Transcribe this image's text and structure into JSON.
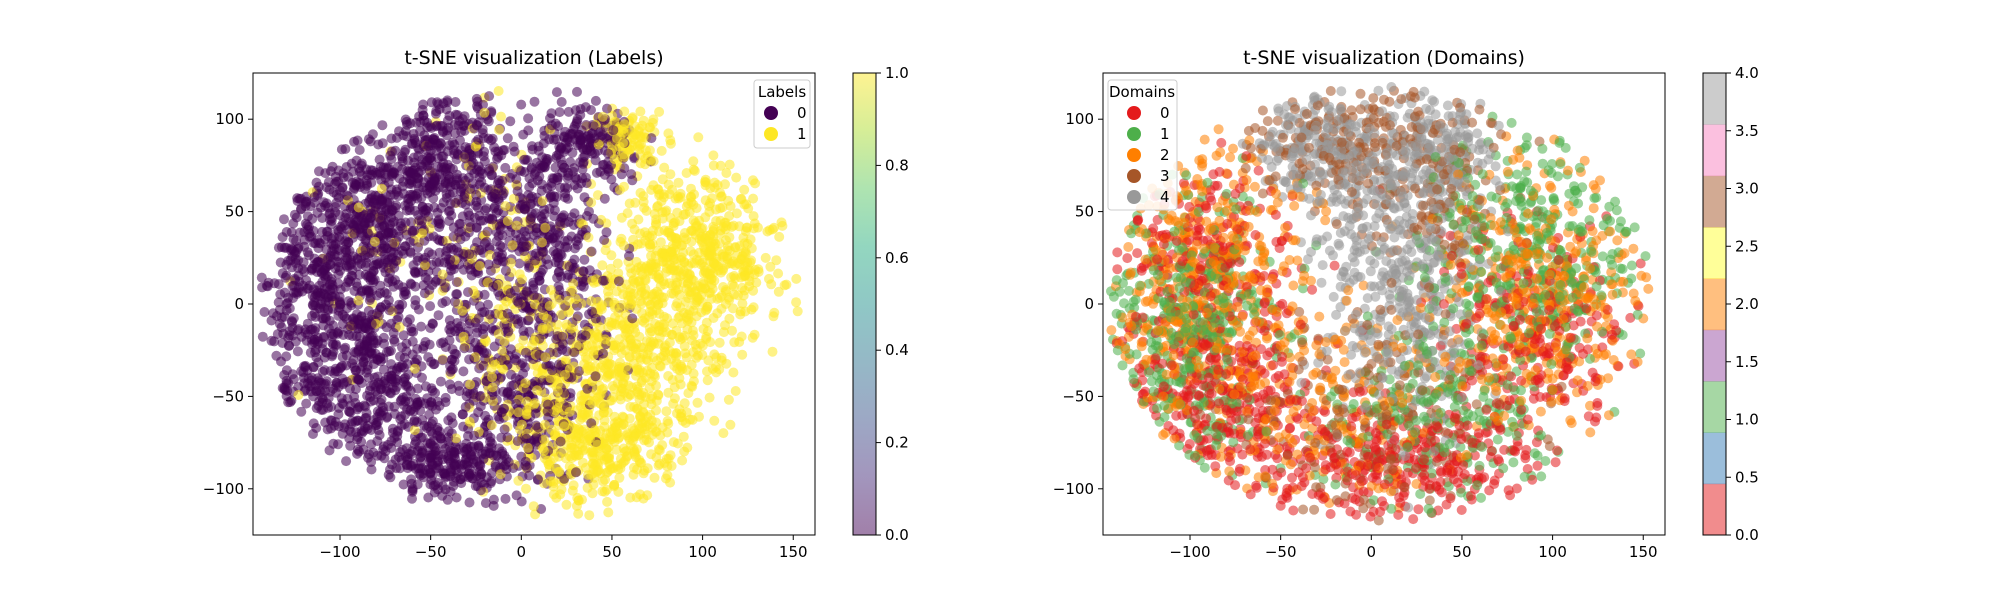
{
  "chart_data": [
    {
      "type": "scatter",
      "title": "t-SNE visualization (Labels)",
      "xlabel": "",
      "ylabel": "",
      "xlim": [
        -148,
        162
      ],
      "ylim": [
        -125,
        125
      ],
      "xticks": [
        -100,
        -50,
        0,
        50,
        100,
        150
      ],
      "yticks": [
        -100,
        -50,
        0,
        50,
        100
      ],
      "xtick_labels": [
        "−100",
        "−50",
        "0",
        "50",
        "100",
        "150"
      ],
      "ytick_labels": [
        "−100",
        "−50",
        "0",
        "50",
        "100"
      ],
      "grid": false,
      "legend": {
        "title": "Labels",
        "placement": "top-right",
        "entries": [
          {
            "label": "0",
            "color": "#440154"
          },
          {
            "label": "1",
            "color": "#fde725"
          }
        ]
      },
      "colorbar": {
        "colormap": "viridis",
        "alpha": 0.5,
        "range": [
          0.0,
          1.0
        ],
        "ticks": [
          0.0,
          0.2,
          0.4,
          0.6,
          0.8,
          1.0
        ],
        "tick_labels": [
          "0.0",
          "0.2",
          "0.4",
          "0.6",
          "0.8",
          "1.0"
        ]
      },
      "clusters": [
        {
          "label": 0,
          "x": -110,
          "y": 0,
          "sx": 22,
          "sy": 38,
          "n": 600
        },
        {
          "label": 0,
          "x": -80,
          "y": 45,
          "sx": 20,
          "sy": 25,
          "n": 380
        },
        {
          "label": 0,
          "x": -45,
          "y": 75,
          "sx": 18,
          "sy": 22,
          "n": 300
        },
        {
          "label": 0,
          "x": -80,
          "y": -45,
          "sx": 22,
          "sy": 25,
          "n": 380
        },
        {
          "label": 0,
          "x": -40,
          "y": -85,
          "sx": 18,
          "sy": 12,
          "n": 240
        },
        {
          "label": 0,
          "x": -25,
          "y": 20,
          "sx": 14,
          "sy": 45,
          "n": 280
        },
        {
          "label": 0,
          "x": 10,
          "y": 55,
          "sx": 15,
          "sy": 25,
          "n": 220
        },
        {
          "label": 0,
          "x": 20,
          "y": 0,
          "sx": 16,
          "sy": 30,
          "n": 200
        },
        {
          "label": 0,
          "x": 0,
          "y": -60,
          "sx": 16,
          "sy": 25,
          "n": 200
        },
        {
          "label": 0,
          "x": 40,
          "y": 85,
          "sx": 14,
          "sy": 12,
          "n": 150
        },
        {
          "label": 1,
          "x": 95,
          "y": 25,
          "sx": 25,
          "sy": 25,
          "n": 600
        },
        {
          "label": 1,
          "x": 65,
          "y": -30,
          "sx": 22,
          "sy": 25,
          "n": 420
        },
        {
          "label": 1,
          "x": 40,
          "y": -80,
          "sx": 20,
          "sy": 14,
          "n": 280
        },
        {
          "label": 1,
          "x": 60,
          "y": 90,
          "sx": 10,
          "sy": 8,
          "n": 100
        },
        {
          "label": 1,
          "x": 15,
          "y": -40,
          "sx": 20,
          "sy": 30,
          "n": 200
        },
        {
          "label": 1,
          "x": -10,
          "y": 10,
          "sx": 14,
          "sy": 40,
          "n": 110
        },
        {
          "label": 1,
          "x": -60,
          "y": 30,
          "sx": 30,
          "sy": 40,
          "n": 70
        }
      ]
    },
    {
      "type": "scatter",
      "title": "t-SNE visualization (Domains)",
      "xlabel": "",
      "ylabel": "",
      "xlim": [
        -148,
        162
      ],
      "ylim": [
        -125,
        125
      ],
      "xticks": [
        -100,
        -50,
        0,
        50,
        100,
        150
      ],
      "yticks": [
        -100,
        -50,
        0,
        50,
        100
      ],
      "xtick_labels": [
        "−100",
        "−50",
        "0",
        "50",
        "100",
        "150"
      ],
      "ytick_labels": [
        "−100",
        "−50",
        "0",
        "50",
        "100"
      ],
      "grid": false,
      "legend": {
        "title": "Domains",
        "placement": "top-left",
        "entries": [
          {
            "label": "0",
            "color": "#e41a1c"
          },
          {
            "label": "1",
            "color": "#4daf4a"
          },
          {
            "label": "2",
            "color": "#ff7f00"
          },
          {
            "label": "3",
            "color": "#a65628"
          },
          {
            "label": "4",
            "color": "#999999"
          }
        ]
      },
      "colorbar": {
        "colormap": "Set1",
        "alpha": 0.5,
        "range": [
          0.0,
          4.0
        ],
        "ticks": [
          0.0,
          0.5,
          1.0,
          1.5,
          2.0,
          2.5,
          3.0,
          3.5,
          4.0
        ],
        "tick_labels": [
          "0.0",
          "0.5",
          "1.0",
          "1.5",
          "2.0",
          "2.5",
          "3.0",
          "3.5",
          "4.0"
        ],
        "bands": [
          "#e41a1c",
          "#377eb8",
          "#4daf4a",
          "#984ea3",
          "#ff7f00",
          "#ffff33",
          "#a65628",
          "#f781bf",
          "#999999"
        ]
      },
      "clusters": [
        {
          "domain": 4,
          "x": 10,
          "y": 40,
          "sx": 22,
          "sy": 45,
          "n": 450
        },
        {
          "domain": 4,
          "x": -30,
          "y": 85,
          "sx": 16,
          "sy": 14,
          "n": 200
        },
        {
          "domain": 4,
          "x": 40,
          "y": 85,
          "sx": 14,
          "sy": 12,
          "n": 130
        },
        {
          "domain": 4,
          "x": 30,
          "y": -20,
          "sx": 18,
          "sy": 30,
          "n": 120
        },
        {
          "domain": 3,
          "x": -20,
          "y": 90,
          "sx": 25,
          "sy": 15,
          "n": 150
        },
        {
          "domain": 3,
          "x": 30,
          "y": 70,
          "sx": 25,
          "sy": 25,
          "n": 160
        },
        {
          "domain": 3,
          "x": 0,
          "y": -60,
          "sx": 40,
          "sy": 30,
          "n": 180
        },
        {
          "domain": 2,
          "x": -95,
          "y": 10,
          "sx": 28,
          "sy": 40,
          "n": 500
        },
        {
          "domain": 2,
          "x": 95,
          "y": 10,
          "sx": 30,
          "sy": 35,
          "n": 400
        },
        {
          "domain": 2,
          "x": -20,
          "y": -60,
          "sx": 35,
          "sy": 30,
          "n": 220
        },
        {
          "domain": 1,
          "x": -100,
          "y": -20,
          "sx": 25,
          "sy": 40,
          "n": 420
        },
        {
          "domain": 1,
          "x": 90,
          "y": 30,
          "sx": 30,
          "sy": 30,
          "n": 380
        },
        {
          "domain": 1,
          "x": 40,
          "y": -60,
          "sx": 30,
          "sy": 25,
          "n": 230
        },
        {
          "domain": 0,
          "x": -80,
          "y": -55,
          "sx": 30,
          "sy": 30,
          "n": 400
        },
        {
          "domain": 0,
          "x": 20,
          "y": -85,
          "sx": 35,
          "sy": 15,
          "n": 300
        },
        {
          "domain": 0,
          "x": 90,
          "y": -20,
          "sx": 25,
          "sy": 30,
          "n": 250
        },
        {
          "domain": 0,
          "x": -90,
          "y": 30,
          "sx": 25,
          "sy": 25,
          "n": 200
        }
      ]
    }
  ]
}
